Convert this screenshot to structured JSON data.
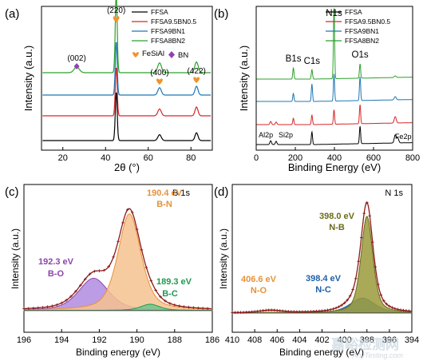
{
  "chart_data": [
    {
      "panel": "(a)",
      "type": "line",
      "xlabel": "2θ (°)",
      "ylabel": "Intensity (a.u.)",
      "xlim": [
        10,
        90
      ],
      "xticks": [
        20,
        40,
        60,
        80
      ],
      "yticks_shown": false,
      "legend_position": "top-right",
      "series": [
        {
          "name": "FFSA",
          "color": "#000000",
          "offset": 0.0,
          "peaks": [
            [
              45.0,
              1.0,
              0.45
            ],
            [
              65.3,
              0.12,
              0.8
            ],
            [
              82.6,
              0.16,
              0.7
            ]
          ]
        },
        {
          "name": "FFSA9.5BN0.5",
          "color": "#d62728",
          "offset": 1.0,
          "peaks": [
            [
              45.0,
              1.0,
              0.45
            ],
            [
              65.3,
              0.14,
              0.8
            ],
            [
              82.6,
              0.18,
              0.7
            ]
          ]
        },
        {
          "name": "FFSA9BN1",
          "color": "#1f77b4",
          "offset": 2.0,
          "peaks": [
            [
              45.0,
              1.1,
              0.45
            ],
            [
              65.3,
              0.15,
              0.8
            ],
            [
              82.6,
              0.18,
              0.7
            ]
          ]
        },
        {
          "name": "FFSA8BN2",
          "color": "#2ca02c",
          "offset": 3.0,
          "peaks": [
            [
              26.5,
              0.12,
              1.2
            ],
            [
              45.0,
              1.65,
              0.45
            ],
            [
              65.3,
              0.2,
              0.9
            ],
            [
              82.6,
              0.22,
              0.8
            ]
          ]
        }
      ],
      "markers": [
        {
          "label": "(002)",
          "x": 26.5,
          "kind": "BN"
        },
        {
          "label": "(220)",
          "x": 45.0,
          "kind": "FeSiAl"
        },
        {
          "label": "(400)",
          "x": 65.3,
          "kind": "FeSiAl"
        },
        {
          "label": "(422)",
          "x": 82.6,
          "kind": "FeSiAl"
        }
      ],
      "phase_legend": [
        {
          "label": "FeSiAl",
          "color": "#f0932b",
          "symbol": "heart"
        },
        {
          "label": "BN",
          "color": "#8e44ad",
          "symbol": "diamond"
        }
      ]
    },
    {
      "panel": "(b)",
      "type": "line",
      "xlabel": "Binding Energy (eV)",
      "ylabel": "Intensity (a.u.)",
      "xlim": [
        0,
        800
      ],
      "xticks": [
        0,
        200,
        400,
        600,
        800
      ],
      "yticks_shown": false,
      "legend_position": "top-right",
      "series": [
        {
          "name": "FFSA",
          "color": "#000000",
          "offset": 0.0,
          "peaks": [
            [
              74,
              0.12,
              4
            ],
            [
              102,
              0.1,
              4
            ],
            [
              285,
              0.4,
              3
            ],
            [
              531,
              0.55,
              3
            ],
            [
              711,
              0.25,
              5
            ],
            [
              724,
              0.15,
              5
            ]
          ]
        },
        {
          "name": "FFSA9.5BN0.5",
          "color": "#d62728",
          "offset": 1.0,
          "peaks": [
            [
              74,
              0.1,
              4
            ],
            [
              102,
              0.08,
              4
            ],
            [
              190,
              0.2,
              3
            ],
            [
              285,
              0.3,
              3
            ],
            [
              398,
              0.45,
              3
            ],
            [
              531,
              0.6,
              3
            ],
            [
              711,
              0.2,
              5
            ]
          ]
        },
        {
          "name": "FFSA9BN1",
          "color": "#1f77b4",
          "offset": 2.0,
          "peaks": [
            [
              190,
              0.25,
              3
            ],
            [
              285,
              0.55,
              3
            ],
            [
              398,
              0.85,
              3
            ],
            [
              531,
              0.75,
              3
            ],
            [
              711,
              0.1,
              5
            ]
          ]
        },
        {
          "name": "FFSA8BN2",
          "color": "#2ca02c",
          "offset": 3.0,
          "peaks": [
            [
              190,
              0.35,
              3
            ],
            [
              285,
              0.3,
              3
            ],
            [
              398,
              2.2,
              3
            ],
            [
              531,
              0.45,
              3
            ],
            [
              711,
              0.05,
              5
            ]
          ]
        }
      ],
      "annotations": [
        {
          "label": "B1s",
          "x": 190
        },
        {
          "label": "C1s",
          "x": 285
        },
        {
          "label": "N1s",
          "x": 398
        },
        {
          "label": "O1s",
          "x": 531
        },
        {
          "label": "Al2p",
          "x": 74
        },
        {
          "label": "Si2p",
          "x": 102
        },
        {
          "label": "Fe2p",
          "x": 711
        }
      ]
    },
    {
      "panel": "(c)",
      "type": "area",
      "corner_label": "B 1s",
      "xlabel": "Binding energy (eV)",
      "ylabel": "Intensity (a.u.)",
      "xlim": [
        196,
        186
      ],
      "xticks": [
        196,
        194,
        192,
        190,
        188,
        186
      ],
      "yticks_shown": false,
      "components": [
        {
          "label": "192.3 eV",
          "sublabel": "B-O",
          "center": 192.3,
          "height": 0.26,
          "fwhm": 1.9,
          "color": "#8e44ad",
          "fill": "#b08be0"
        },
        {
          "label": "190.4 eV",
          "sublabel": "B-N",
          "center": 190.4,
          "height": 0.78,
          "fwhm": 1.45,
          "color": "#e8913a",
          "fill": "#f6c28f"
        },
        {
          "label": "189.3 eV",
          "sublabel": "B-C",
          "center": 189.3,
          "height": 0.05,
          "fwhm": 1.2,
          "color": "#1e9a50",
          "fill": "#6fc58e"
        }
      ],
      "background": 0.06,
      "envelope_color": "#8b1a1a"
    },
    {
      "panel": "(d)",
      "type": "area",
      "corner_label": "N 1s",
      "xlabel": "Binding energy (eV)",
      "ylabel": "Intensity (a.u.)",
      "xlim": [
        410,
        394
      ],
      "xticks": [
        410,
        408,
        406,
        404,
        402,
        400,
        398,
        396,
        394
      ],
      "yticks_shown": false,
      "components": [
        {
          "label": "406.6 eV",
          "sublabel": "N-O",
          "center": 406.6,
          "height": 0.02,
          "fwhm": 2.5,
          "color": "#e8913a",
          "fill": "#f6c28f"
        },
        {
          "label": "398.4 eV",
          "sublabel": "N-C",
          "center": 398.4,
          "height": 0.12,
          "fwhm": 2.6,
          "color": "#1f5fa8",
          "fill": "#3f7fc0"
        },
        {
          "label": "398.0 eV",
          "sublabel": "N-B",
          "center": 398.0,
          "height": 0.78,
          "fwhm": 1.25,
          "color": "#6b6b1a",
          "fill": "#9a9a3a"
        }
      ],
      "background": 0.04,
      "envelope_color": "#8b1a1a"
    }
  ],
  "watermark": {
    "text_cn": "嘉峪检测网",
    "text_en": "AnyTesting.com"
  }
}
